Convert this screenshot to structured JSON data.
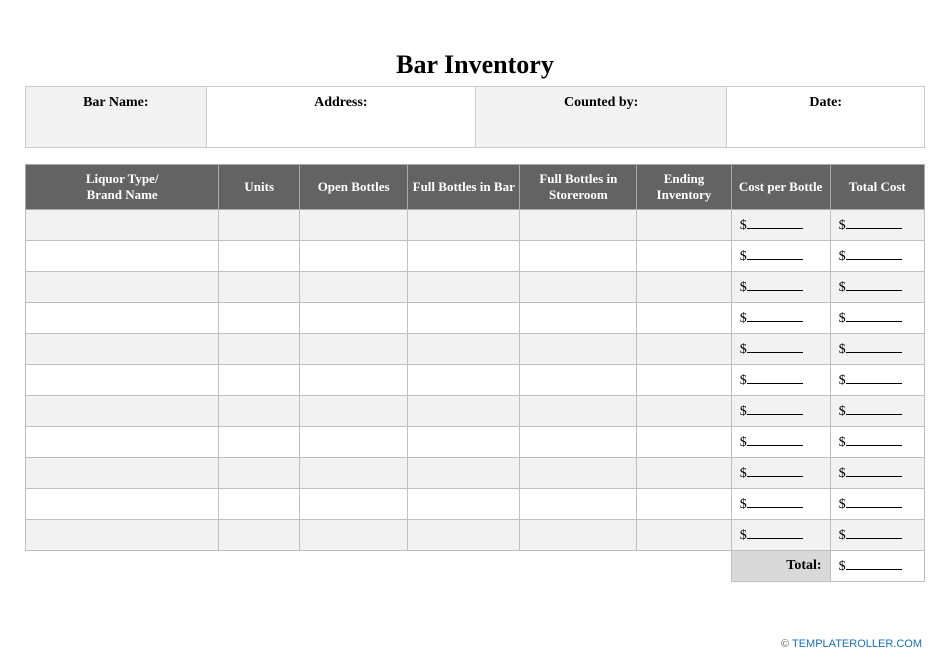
{
  "title": "Bar Inventory",
  "info": {
    "bar_name_label": "Bar Name:",
    "address_label": "Address:",
    "counted_by_label": "Counted by:",
    "date_label": "Date:"
  },
  "columns": {
    "c0": "Liquor Type/\nBrand Name",
    "c1": "Units",
    "c2": "Open Bottles",
    "c3": "Full Bottles in Bar",
    "c4": "Full Bottles in Storeroom",
    "c5": "Ending Inventory",
    "c6": "Cost per Bottle",
    "c7": "Total Cost"
  },
  "col_widths_pct": [
    21.5,
    9,
    12,
    12.5,
    13,
    10.5,
    11,
    10.5
  ],
  "row_count": 11,
  "currency_symbol": "$",
  "total_label": "Total:",
  "footer": {
    "copyright": "©",
    "site": "TEMPLATEROLLER.COM"
  },
  "colors": {
    "header_bg": "#636363",
    "header_fg": "#ffffff",
    "stripe_bg": "#f2f2f2",
    "border": "#bfbfbf",
    "total_bg": "#d9d9d9",
    "link": "#1a6fb3"
  },
  "info_widths_pct": [
    20,
    30,
    28,
    22
  ]
}
